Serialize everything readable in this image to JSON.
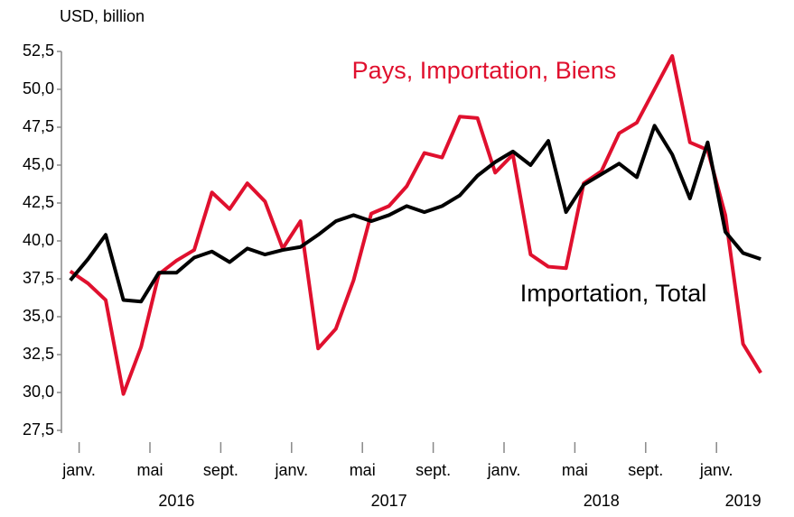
{
  "chart_data": {
    "type": "line",
    "unit_label": "USD, billion",
    "categories": [
      "janv.",
      null,
      null,
      null,
      "mai",
      null,
      null,
      null,
      "sept.",
      null,
      null,
      null,
      "janv.",
      null,
      null,
      null,
      "mai",
      null,
      null,
      null,
      "sept.",
      null,
      null,
      null,
      "janv.",
      null,
      null,
      null,
      "mai",
      null,
      null,
      null,
      "sept.",
      null,
      null,
      null,
      "janv.",
      null,
      null,
      null
    ],
    "years": [
      "2016",
      "2017",
      "2018",
      "2019"
    ],
    "series": [
      {
        "name": "Pays, Importation, Biens",
        "color": "#e0102e",
        "values": [
          38.0,
          37.2,
          36.1,
          29.9,
          33.0,
          37.8,
          38.7,
          39.4,
          43.2,
          42.1,
          43.8,
          42.6,
          39.5,
          41.3,
          32.9,
          34.2,
          37.4,
          41.8,
          42.3,
          43.6,
          45.8,
          45.5,
          48.2,
          48.1,
          44.5,
          45.7,
          39.1,
          38.3,
          38.2,
          43.8,
          44.6,
          47.1,
          47.8,
          50.0,
          52.2,
          46.5,
          46.0,
          41.7,
          33.2,
          31.3
        ]
      },
      {
        "name": "Importation, Total",
        "color": "#000000",
        "values": [
          37.4,
          38.8,
          40.4,
          36.1,
          36.0,
          37.9,
          37.9,
          38.9,
          39.3,
          38.6,
          39.5,
          39.1,
          39.4,
          39.6,
          40.4,
          41.3,
          41.7,
          41.3,
          41.7,
          42.3,
          41.9,
          42.3,
          43.0,
          44.3,
          45.2,
          45.9,
          45.0,
          46.6,
          41.9,
          43.7,
          44.4,
          45.1,
          44.2,
          47.6,
          45.7,
          42.8,
          46.5,
          40.6,
          39.2,
          38.8
        ]
      }
    ],
    "ylim": [
      27.5,
      52.5
    ],
    "yticks": [
      {
        "value": 27.5,
        "label": "27,5"
      },
      {
        "value": 30,
        "label": "30,0"
      },
      {
        "value": 32.5,
        "label": "32,5"
      },
      {
        "value": 35,
        "label": "35,0"
      },
      {
        "value": 37.5,
        "label": "37,5"
      },
      {
        "value": 40,
        "label": "40,0"
      },
      {
        "value": 42.5,
        "label": "42,5"
      },
      {
        "value": 45,
        "label": "45,0"
      },
      {
        "value": 47.5,
        "label": "47,5"
      },
      {
        "value": 50,
        "label": "50,0"
      },
      {
        "value": 52.5,
        "label": "52,5"
      }
    ],
    "grid": false
  }
}
